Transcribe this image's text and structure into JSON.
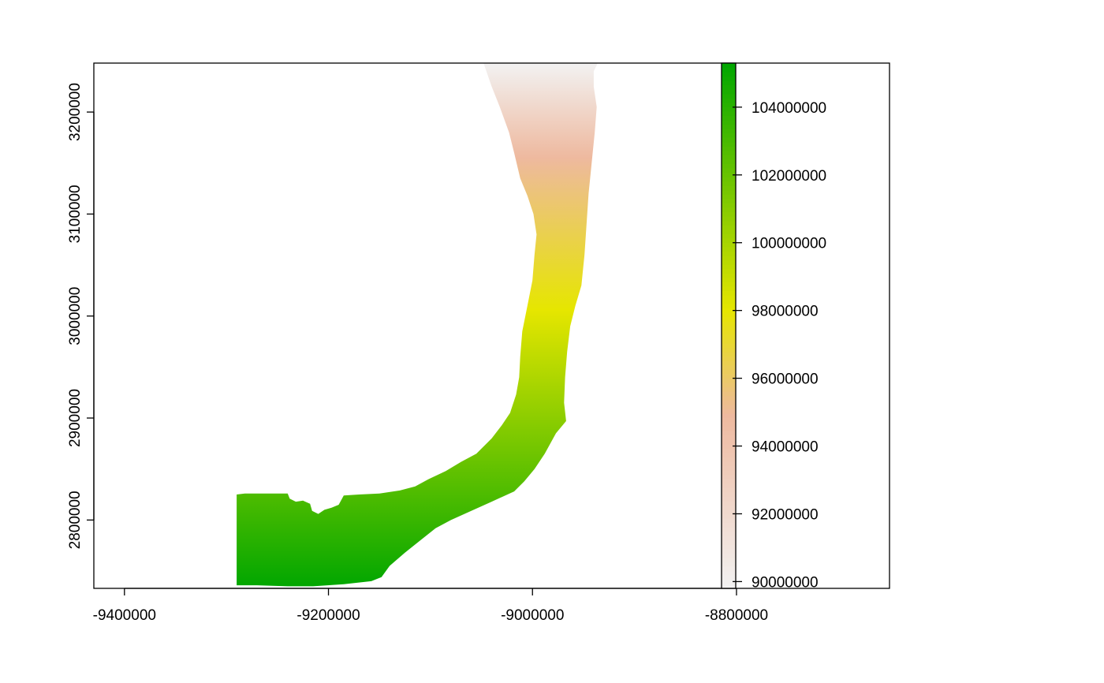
{
  "chart_data": {
    "type": "heatmap",
    "title": "",
    "xlabel": "",
    "ylabel": "",
    "xlim": [
      -9430000,
      -8650000
    ],
    "ylim": [
      2733000,
      3248000
    ],
    "x_ticks": [
      -9400000,
      -9200000,
      -9000000,
      -8800000
    ],
    "x_tick_labels": [
      "-9400000",
      "-9200000",
      "-9000000",
      "-8800000"
    ],
    "y_ticks": [
      2800000,
      2900000,
      3000000,
      3100000,
      3200000
    ],
    "y_tick_labels": [
      "2800000",
      "2900000",
      "3000000",
      "3100000",
      "3200000"
    ],
    "legend": {
      "type": "colorbar",
      "placement": "right",
      "range": [
        89800000,
        105300000
      ],
      "ticks": [
        90000000,
        92000000,
        94000000,
        96000000,
        98000000,
        100000000,
        102000000,
        104000000
      ],
      "tick_labels": [
        "90000000",
        "92000000",
        "94000000",
        "96000000",
        "98000000",
        "100000000",
        "102000000",
        "104000000"
      ]
    },
    "colors": {
      "high": "#00a600",
      "mid": "#e6e600",
      "low": "#f2f2f2",
      "stops": [
        "#f2f2f2",
        "#eeb99f",
        "#e6e600",
        "#00a600"
      ]
    },
    "raster_outline": [
      [
        -9048000,
        3248000
      ],
      [
        -8936000,
        3248000
      ],
      [
        -8940000,
        3240000
      ],
      [
        -8940000,
        3225000
      ],
      [
        -8937000,
        3205000
      ],
      [
        -8939000,
        3180000
      ],
      [
        -8942000,
        3150000
      ],
      [
        -8945000,
        3120000
      ],
      [
        -8947000,
        3090000
      ],
      [
        -8949000,
        3060000
      ],
      [
        -8952000,
        3030000
      ],
      [
        -8958000,
        3010000
      ],
      [
        -8963000,
        2990000
      ],
      [
        -8966000,
        2965000
      ],
      [
        -8968000,
        2940000
      ],
      [
        -8969000,
        2915000
      ],
      [
        -8967000,
        2897000
      ],
      [
        -8977000,
        2885000
      ],
      [
        -8988000,
        2865000
      ],
      [
        -8998000,
        2850000
      ],
      [
        -9008000,
        2838000
      ],
      [
        -9018000,
        2828000
      ],
      [
        -9040000,
        2818000
      ],
      [
        -9060000,
        2809000
      ],
      [
        -9080000,
        2800000
      ],
      [
        -9095000,
        2792000
      ],
      [
        -9110000,
        2780000
      ],
      [
        -9125000,
        2768000
      ],
      [
        -9140000,
        2755000
      ],
      [
        -9148000,
        2744000
      ],
      [
        -9158000,
        2740000
      ],
      [
        -9185000,
        2737000
      ],
      [
        -9215000,
        2735000
      ],
      [
        -9240000,
        2735000
      ],
      [
        -9270000,
        2736000
      ],
      [
        -9290000,
        2736000
      ],
      [
        -9290000,
        2825000
      ],
      [
        -9282000,
        2826000
      ],
      [
        -9240000,
        2826000
      ],
      [
        -9238000,
        2821000
      ],
      [
        -9232000,
        2818000
      ],
      [
        -9225000,
        2819000
      ],
      [
        -9218000,
        2816000
      ],
      [
        -9216000,
        2809000
      ],
      [
        -9210000,
        2806000
      ],
      [
        -9204000,
        2810000
      ],
      [
        -9197000,
        2812000
      ],
      [
        -9190000,
        2815000
      ],
      [
        -9185000,
        2824000
      ],
      [
        -9170000,
        2825000
      ],
      [
        -9150000,
        2826000
      ],
      [
        -9130000,
        2829000
      ],
      [
        -9115000,
        2833000
      ],
      [
        -9102000,
        2840000
      ],
      [
        -9085000,
        2848000
      ],
      [
        -9070000,
        2857000
      ],
      [
        -9055000,
        2865000
      ],
      [
        -9040000,
        2880000
      ],
      [
        -9030000,
        2893000
      ],
      [
        -9022000,
        2905000
      ],
      [
        -9016000,
        2923000
      ],
      [
        -9013000,
        2940000
      ],
      [
        -9012000,
        2960000
      ],
      [
        -9010000,
        2985000
      ],
      [
        -9005000,
        3010000
      ],
      [
        -9000000,
        3035000
      ],
      [
        -8998000,
        3060000
      ],
      [
        -8996000,
        3080000
      ],
      [
        -8999000,
        3100000
      ],
      [
        -9005000,
        3118000
      ],
      [
        -9012000,
        3135000
      ],
      [
        -9018000,
        3160000
      ],
      [
        -9023000,
        3180000
      ],
      [
        -9032000,
        3205000
      ],
      [
        -9040000,
        3225000
      ]
    ]
  }
}
